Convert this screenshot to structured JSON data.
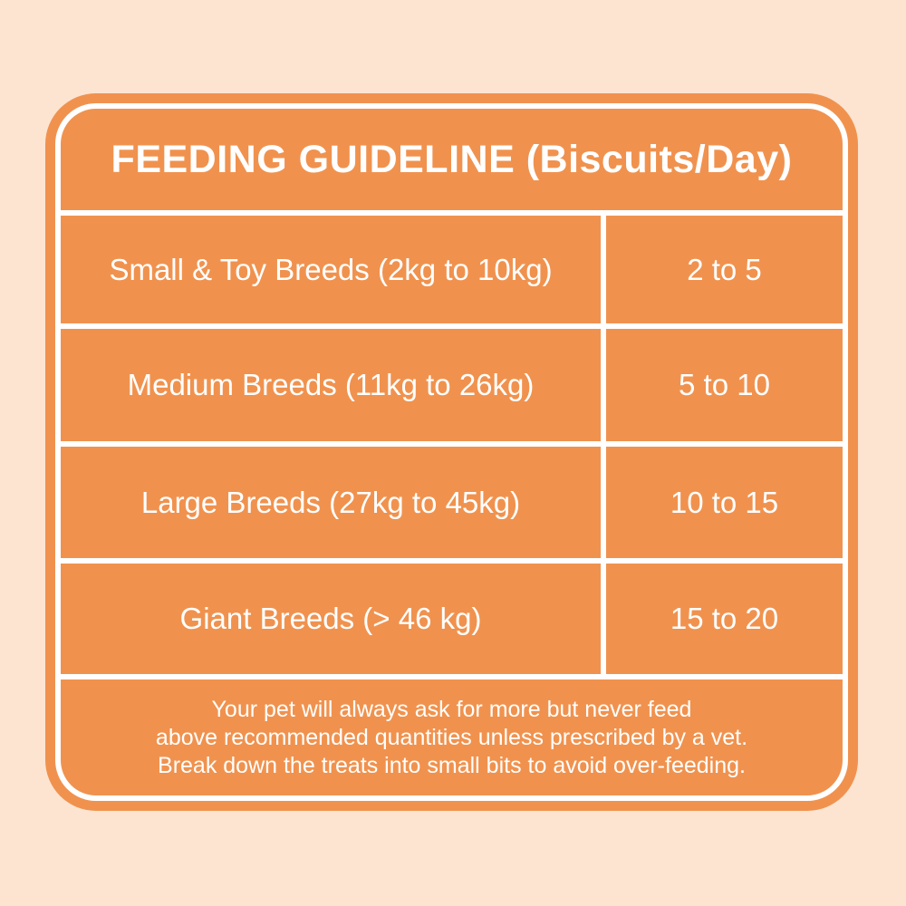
{
  "colors": {
    "bg": "#fce4d1",
    "card": "#f0924e",
    "line": "#ffffff",
    "text": "#ffffff"
  },
  "card": {
    "title": "FEEDING GUIDELINE (Biscuits/Day)",
    "table": {
      "rows": [
        {
          "breed": "Small & Toy Breeds (2kg to 10kg)",
          "quantity": "2 to 5"
        },
        {
          "breed": "Medium Breeds (11kg to 26kg)",
          "quantity": "5 to 10"
        },
        {
          "breed": "Large Breeds (27kg to 45kg)",
          "quantity": "10 to 15"
        },
        {
          "breed": "Giant Breeds (> 46 kg)",
          "quantity": "15 to 20"
        }
      ]
    },
    "footer": {
      "lines": [
        "Your pet will always ask for more but never feed",
        "above recommended quantities unless prescribed by a vet.",
        "Break down the treats into small bits to avoid over-feeding."
      ]
    }
  }
}
